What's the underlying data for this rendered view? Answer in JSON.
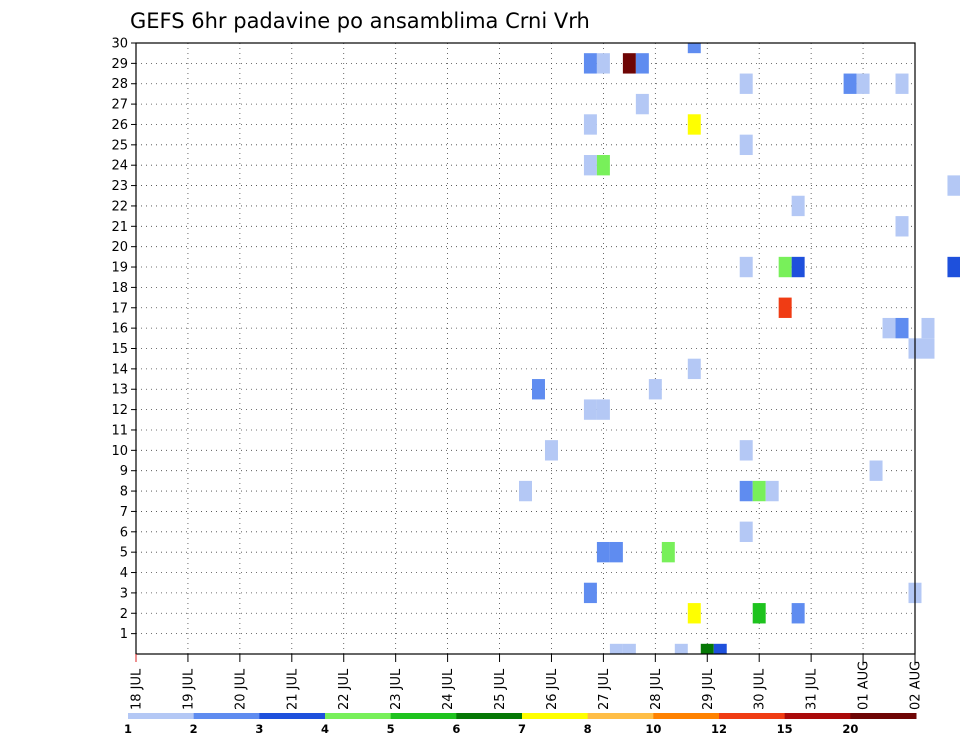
{
  "chart_data": {
    "type": "heatmap",
    "title": "GEFS 6hr padavine po ansamblima Crni Vrh",
    "xlabel": "",
    "ylabel": "",
    "x_unit": "days",
    "x_range": [
      0,
      15
    ],
    "x_tick_labels": [
      "18 JUL",
      "19 JUL",
      "20 JUL",
      "21 JUL",
      "22 JUL",
      "23 JUL",
      "24 JUL",
      "25 JUL",
      "26 JUL",
      "27 JUL",
      "28 JUL",
      "29 JUL",
      "30 JUL",
      "31 JUL",
      "01 AUG",
      "02 AUG"
    ],
    "y_range": [
      0,
      30
    ],
    "y_ticks": [
      1,
      2,
      3,
      4,
      5,
      6,
      7,
      8,
      9,
      10,
      11,
      12,
      13,
      14,
      15,
      16,
      17,
      18,
      19,
      20,
      21,
      22,
      23,
      24,
      25,
      26,
      27,
      28,
      29,
      30
    ],
    "grid": true,
    "colorbar": {
      "placement": "bottom",
      "levels": [
        "1",
        "2",
        "3",
        "4",
        "5",
        "6",
        "7",
        "8",
        "10",
        "12",
        "15",
        "20"
      ],
      "colors": [
        "#b4c8f5",
        "#5f8cf0",
        "#1e50dc",
        "#78f05a",
        "#1ec31e",
        "#057805",
        "#ffff00",
        "#ffbe46",
        "#ff8200",
        "#f03c14",
        "#aa0a0a",
        "#6e0505"
      ]
    },
    "cells": [
      {
        "t": 7.5,
        "m": 8,
        "v": 1.5
      },
      {
        "t": 7.75,
        "m": 13,
        "v": 2.5
      },
      {
        "t": 8.0,
        "m": 10,
        "v": 1.5
      },
      {
        "t": 8.75,
        "m": 3,
        "v": 2.5
      },
      {
        "t": 8.75,
        "m": 12,
        "v": 1.5
      },
      {
        "t": 8.75,
        "m": 24,
        "v": 1.5
      },
      {
        "t": 8.75,
        "m": 26,
        "v": 1.5
      },
      {
        "t": 8.75,
        "m": 29,
        "v": 2.5
      },
      {
        "t": 9.0,
        "m": 5,
        "v": 2.5
      },
      {
        "t": 9.0,
        "m": 12,
        "v": 1.5
      },
      {
        "t": 9.0,
        "m": 24,
        "v": 4.5
      },
      {
        "t": 9.0,
        "m": 29,
        "v": 1.5
      },
      {
        "t": 9.25,
        "m": 5,
        "v": 2.5
      },
      {
        "t": 9.25,
        "m": 0,
        "v": 1.5
      },
      {
        "t": 9.5,
        "m": 0,
        "v": 1.5
      },
      {
        "t": 9.5,
        "m": 29,
        "v": 25
      },
      {
        "t": 9.75,
        "m": 29,
        "v": 2.5
      },
      {
        "t": 9.75,
        "m": 27,
        "v": 1.5
      },
      {
        "t": 10.0,
        "m": 13,
        "v": 1.5
      },
      {
        "t": 10.25,
        "m": 5,
        "v": 4.5
      },
      {
        "t": 10.5,
        "m": 0,
        "v": 1.5
      },
      {
        "t": 10.75,
        "m": 2,
        "v": 7.5
      },
      {
        "t": 10.75,
        "m": 14,
        "v": 1.5
      },
      {
        "t": 10.75,
        "m": 26,
        "v": 7.5
      },
      {
        "t": 10.75,
        "m": 30,
        "v": 2.5
      },
      {
        "t": 11.0,
        "m": 0,
        "v": 6.5
      },
      {
        "t": 11.25,
        "m": 0,
        "v": 3.5
      },
      {
        "t": 11.75,
        "m": 6,
        "v": 1.5
      },
      {
        "t": 11.75,
        "m": 8,
        "v": 2.5
      },
      {
        "t": 11.75,
        "m": 10,
        "v": 1.5
      },
      {
        "t": 11.75,
        "m": 19,
        "v": 1.5
      },
      {
        "t": 11.75,
        "m": 25,
        "v": 1.5
      },
      {
        "t": 11.75,
        "m": 28,
        "v": 1.5
      },
      {
        "t": 12.0,
        "m": 2,
        "v": 5.5
      },
      {
        "t": 12.0,
        "m": 8,
        "v": 4.5
      },
      {
        "t": 12.25,
        "m": 8,
        "v": 1.5
      },
      {
        "t": 12.5,
        "m": 17,
        "v": 13
      },
      {
        "t": 12.5,
        "m": 19,
        "v": 4.5
      },
      {
        "t": 12.75,
        "m": 2,
        "v": 2.5
      },
      {
        "t": 12.75,
        "m": 19,
        "v": 3.5
      },
      {
        "t": 12.75,
        "m": 22,
        "v": 1.5
      },
      {
        "t": 13.75,
        "m": 28,
        "v": 2.5
      },
      {
        "t": 14.0,
        "m": 28,
        "v": 1.5
      },
      {
        "t": 14.25,
        "m": 9,
        "v": 1.5
      },
      {
        "t": 14.5,
        "m": 16,
        "v": 1.5
      },
      {
        "t": 14.75,
        "m": 16,
        "v": 2.5
      },
      {
        "t": 14.75,
        "m": 21,
        "v": 1.5
      },
      {
        "t": 14.75,
        "m": 28,
        "v": 1.5
      },
      {
        "t": 15.0,
        "m": 3,
        "v": 1.5
      },
      {
        "t": 15.0,
        "m": 15,
        "v": 1.5
      },
      {
        "t": 15.25,
        "m": 15,
        "v": 1.5
      },
      {
        "t": 15.25,
        "m": 16,
        "v": 1.5
      },
      {
        "t": 15.75,
        "m": 19,
        "v": 3.5
      },
      {
        "t": 15.75,
        "m": 23,
        "v": 1.5
      }
    ]
  }
}
